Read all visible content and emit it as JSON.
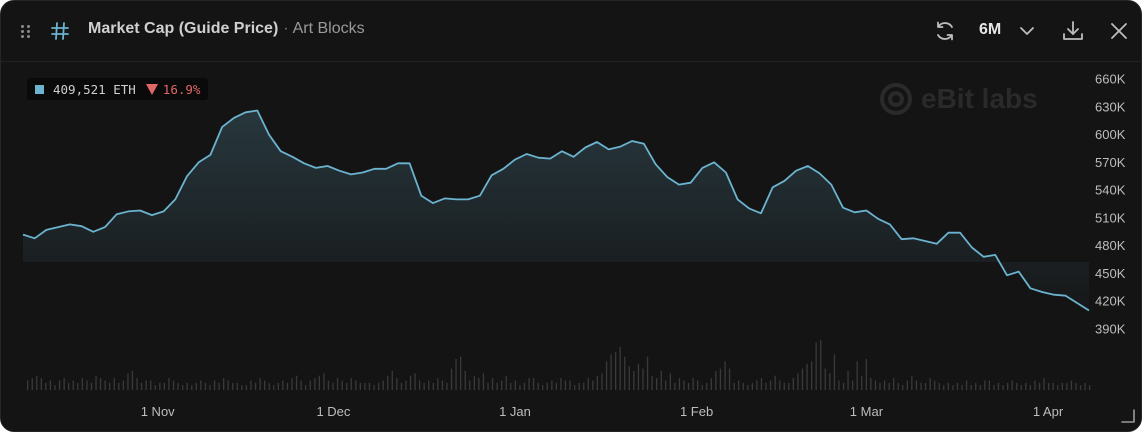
{
  "header": {
    "title": "Market Cap (Guide Price)",
    "separator": "·",
    "collection": "Art Blocks",
    "range": "6M",
    "icons": [
      "drag-handle-icon",
      "hash-icon",
      "refresh-icon",
      "chevron-down-icon",
      "download-icon",
      "close-icon"
    ]
  },
  "badge": {
    "value": "409,521 ETH",
    "change": "16.9%",
    "direction": "down"
  },
  "watermark": "eBit labs",
  "colors": {
    "background": "#141414",
    "line": "#6bb3cf",
    "volume": "#3a3a3a",
    "negative": "#e06767",
    "axis_text": "#bdbdbd"
  },
  "chart_data": {
    "type": "area",
    "title": "Market Cap (Guide Price)",
    "ylabel": "",
    "xlabel": "",
    "ylim": [
      390000,
      660000
    ],
    "yticks": [
      660000,
      630000,
      600000,
      570000,
      540000,
      510000,
      480000,
      450000,
      420000,
      390000
    ],
    "ytick_labels": [
      "660K",
      "630K",
      "600K",
      "570K",
      "540K",
      "510K",
      "480K",
      "450K",
      "420K",
      "390K"
    ],
    "xlim": [
      "2023-10-09",
      "2024-04-08"
    ],
    "xticks": [
      "2023-11-01",
      "2023-12-01",
      "2024-01-01",
      "2024-02-01",
      "2024-03-01",
      "2024-04-01"
    ],
    "xtick_labels": [
      "1 Nov",
      "1 Dec",
      "1 Jan",
      "1 Feb",
      "1 Mar",
      "1 Apr"
    ],
    "grid": false,
    "legend": "none",
    "series": [
      {
        "name": "",
        "x": [
          "2023-10-09",
          "2023-10-11",
          "2023-10-13",
          "2023-10-15",
          "2023-10-17",
          "2023-10-19",
          "2023-10-21",
          "2023-10-23",
          "2023-10-25",
          "2023-10-27",
          "2023-10-29",
          "2023-10-31",
          "2023-11-02",
          "2023-11-04",
          "2023-11-06",
          "2023-11-08",
          "2023-11-10",
          "2023-11-12",
          "2023-11-14",
          "2023-11-16",
          "2023-11-18",
          "2023-11-20",
          "2023-11-22",
          "2023-11-24",
          "2023-11-26",
          "2023-11-28",
          "2023-11-30",
          "2023-12-02",
          "2023-12-04",
          "2023-12-06",
          "2023-12-08",
          "2023-12-10",
          "2023-12-12",
          "2023-12-14",
          "2023-12-16",
          "2023-12-18",
          "2023-12-20",
          "2023-12-22",
          "2023-12-24",
          "2023-12-26",
          "2023-12-28",
          "2023-12-30",
          "2024-01-01",
          "2024-01-03",
          "2024-01-05",
          "2024-01-07",
          "2024-01-09",
          "2024-01-11",
          "2024-01-13",
          "2024-01-15",
          "2024-01-17",
          "2024-01-19",
          "2024-01-21",
          "2024-01-23",
          "2024-01-25",
          "2024-01-27",
          "2024-01-29",
          "2024-01-31",
          "2024-02-02",
          "2024-02-04",
          "2024-02-06",
          "2024-02-08",
          "2024-02-10",
          "2024-02-12",
          "2024-02-14",
          "2024-02-16",
          "2024-02-18",
          "2024-02-20",
          "2024-02-22",
          "2024-02-24",
          "2024-02-26",
          "2024-02-28",
          "2024-03-01",
          "2024-03-03",
          "2024-03-05",
          "2024-03-07",
          "2024-03-09",
          "2024-03-11",
          "2024-03-13",
          "2024-03-15",
          "2024-03-17",
          "2024-03-19",
          "2024-03-21",
          "2024-03-23",
          "2024-03-25",
          "2024-03-27",
          "2024-03-29",
          "2024-03-31",
          "2024-04-02",
          "2024-04-04",
          "2024-04-06",
          "2024-04-08"
        ],
        "values": [
          492000,
          488000,
          497000,
          500000,
          503000,
          501000,
          495000,
          500000,
          514000,
          517000,
          518000,
          513000,
          517000,
          530000,
          555000,
          570000,
          578000,
          608000,
          618000,
          624000,
          626000,
          600000,
          582000,
          576000,
          569000,
          564000,
          566000,
          561000,
          557000,
          559000,
          563000,
          563000,
          569000,
          569000,
          534000,
          526000,
          531000,
          530000,
          530000,
          534000,
          556000,
          563000,
          573000,
          579000,
          575000,
          574000,
          582000,
          576000,
          586000,
          592000,
          584000,
          587000,
          593000,
          590000,
          568000,
          554000,
          546000,
          548000,
          564000,
          570000,
          559000,
          530000,
          520000,
          515000,
          543000,
          550000,
          561000,
          566000,
          558000,
          546000,
          521000,
          516000,
          518000,
          509000,
          503000,
          487000,
          488000,
          485000,
          482000,
          494000,
          494000,
          478000,
          468000,
          470000,
          448000,
          452000,
          434000,
          430000,
          427000,
          426000,
          418000,
          410000
        ]
      }
    ],
    "volume": [
      4,
      5,
      6,
      5,
      3,
      4,
      2,
      4,
      5,
      3,
      4,
      3,
      5,
      4,
      3,
      6,
      5,
      4,
      3,
      5,
      3,
      4,
      7,
      8,
      5,
      3,
      4,
      4,
      2,
      3,
      3,
      5,
      4,
      3,
      2,
      3,
      2,
      3,
      4,
      3,
      2,
      4,
      3,
      5,
      4,
      3,
      3,
      2,
      2,
      4,
      3,
      5,
      4,
      3,
      2,
      3,
      4,
      3,
      5,
      6,
      4,
      2,
      4,
      5,
      6,
      7,
      4,
      3,
      5,
      4,
      3,
      5,
      4,
      3,
      3,
      3,
      2,
      3,
      4,
      6,
      8,
      5,
      3,
      4,
      6,
      7,
      4,
      3,
      4,
      3,
      5,
      4,
      3,
      9,
      13,
      14,
      8,
      4,
      6,
      5,
      7,
      3,
      5,
      3,
      4,
      6,
      3,
      4,
      2,
      3,
      5,
      5,
      3,
      2,
      3,
      4,
      3,
      5,
      4,
      4,
      2,
      3,
      3,
      5,
      4,
      6,
      7,
      12,
      15,
      16,
      18,
      14,
      10,
      8,
      11,
      9,
      14,
      6,
      5,
      8,
      4,
      7,
      3,
      5,
      4,
      3,
      5,
      4,
      2,
      3,
      5,
      8,
      9,
      12,
      9,
      3,
      4,
      3,
      2,
      3,
      4,
      5,
      3,
      4,
      6,
      4,
      3,
      3,
      5,
      7,
      9,
      11,
      12,
      20,
      21,
      9,
      7,
      15,
      4,
      3,
      8,
      4,
      12,
      6,
      13,
      5,
      4,
      3,
      4,
      3,
      5,
      3,
      2,
      4,
      6,
      4,
      3,
      3,
      5,
      4,
      3,
      2,
      3,
      2,
      3,
      2,
      4,
      2,
      3,
      2,
      4,
      4,
      2,
      3,
      2,
      3,
      4,
      3,
      2,
      3,
      2,
      4,
      3,
      5,
      3,
      3,
      2,
      3,
      3,
      4,
      3,
      2,
      3,
      2
    ]
  }
}
